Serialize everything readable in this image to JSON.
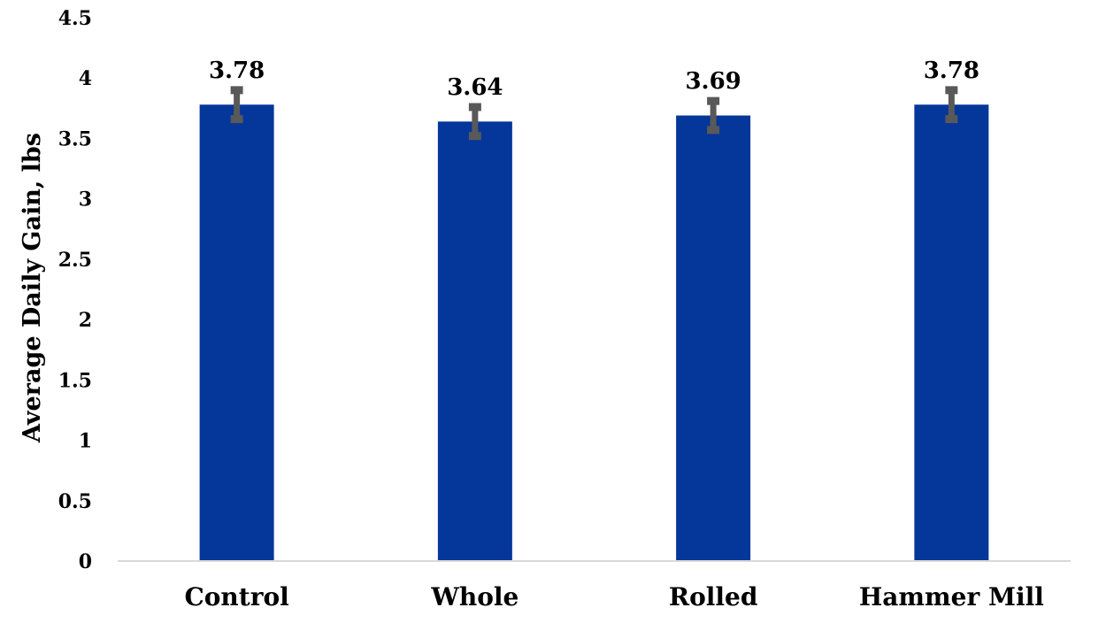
{
  "chart_data": {
    "type": "bar",
    "categories": [
      "Control",
      "Whole",
      "Rolled",
      "Hammer Mill"
    ],
    "values": [
      3.78,
      3.64,
      3.69,
      3.78
    ],
    "data_labels": [
      "3.78",
      "3.64",
      "3.69",
      "3.78"
    ],
    "error_bars": [
      0.12,
      0.12,
      0.12,
      0.12
    ],
    "title": "",
    "xlabel": "",
    "ylabel": "Average Daily Gain, lbs",
    "ylim": [
      0,
      4.5
    ],
    "yticks": [
      0,
      0.5,
      1,
      1.5,
      2,
      2.5,
      3,
      3.5,
      4,
      4.5
    ],
    "ytick_labels": [
      "0",
      "0.5",
      "1",
      "1.5",
      "2",
      "2.5",
      "3",
      "3.5",
      "4",
      "4.5"
    ],
    "grid": false,
    "legend": "none",
    "colors": {
      "bar": "#05369A",
      "error_bar": "#595959",
      "axis_line": "#d9d9d9",
      "text": "#000000"
    }
  }
}
